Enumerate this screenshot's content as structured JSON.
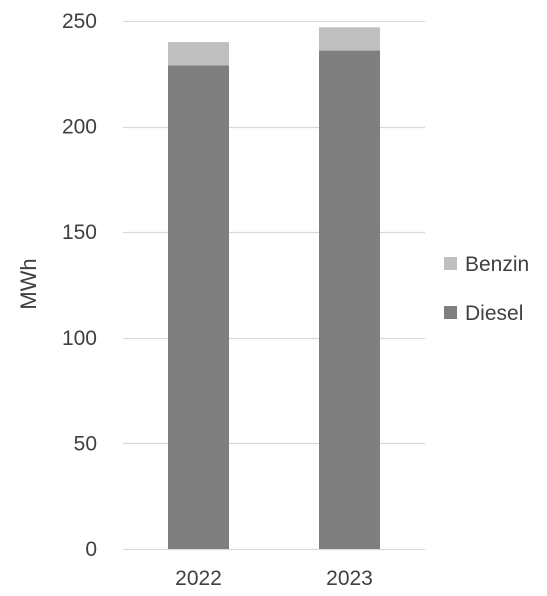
{
  "chart_data": {
    "type": "bar",
    "stacked": true,
    "title": "",
    "xlabel": "",
    "ylabel": "MWh",
    "categories": [
      "2022",
      "2023"
    ],
    "series": [
      {
        "name": "Diesel",
        "values": [
          229,
          236
        ],
        "color": "#7f7f7f"
      },
      {
        "name": "Benzin",
        "values": [
          11,
          11
        ],
        "color": "#bfbfbf"
      }
    ],
    "ylim": [
      0,
      250
    ],
    "yticks": [
      0,
      50,
      100,
      150,
      200,
      250
    ],
    "grid": true,
    "gridline_color": "#d9d9d9",
    "legend": {
      "placement": "right",
      "order": [
        "Benzin",
        "Diesel"
      ]
    }
  }
}
